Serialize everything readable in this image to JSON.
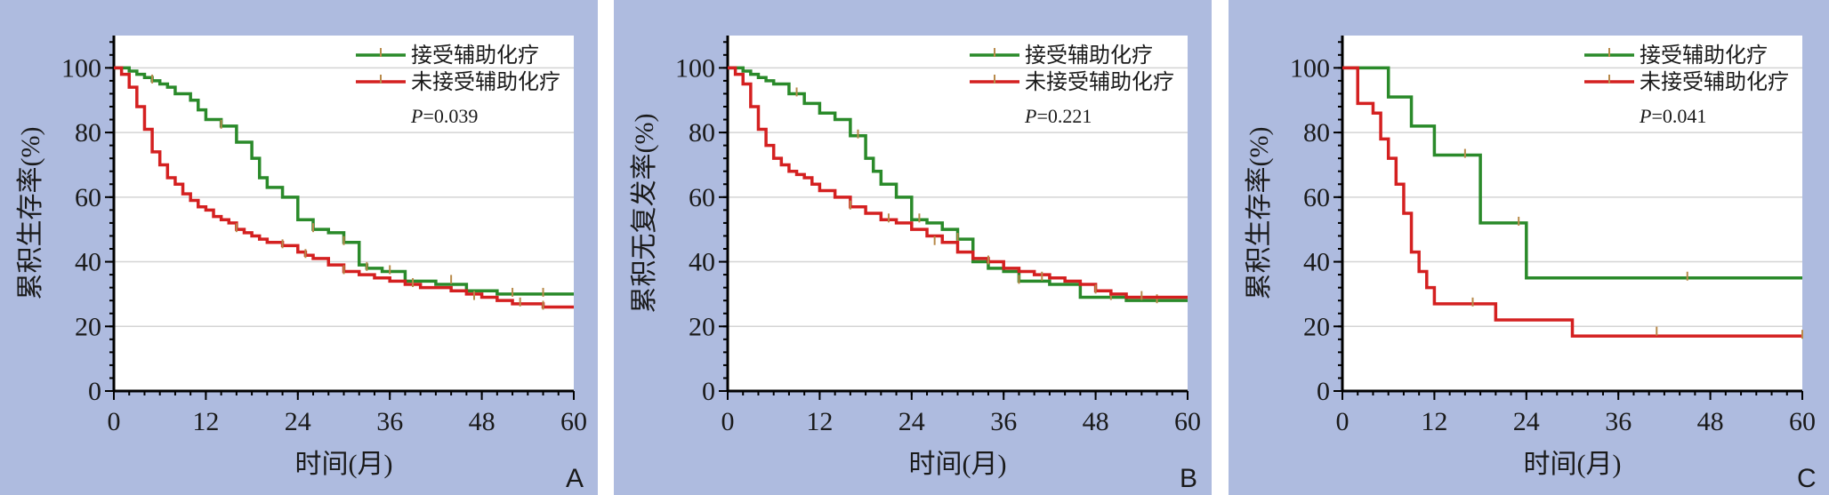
{
  "colors": {
    "panel_background": "#aebbdf",
    "adjuvant_chemo": "#2a8a2a",
    "no_adjuvant_chemo": "#d42020",
    "censor_mark": "#b88a4a"
  },
  "chart_data": [
    {
      "type": "line",
      "subtype": "kaplan-meier step",
      "panel_letter": "A",
      "ylabel": "累积生存率(%)",
      "xlabel": "时间(月)",
      "xlim": [
        0,
        60
      ],
      "ylim": [
        0,
        110
      ],
      "xticks": [
        0,
        12,
        24,
        36,
        48,
        60
      ],
      "yticks": [
        0,
        20,
        40,
        60,
        80,
        100
      ],
      "grid": "horizontal",
      "legend_position": "top-right",
      "p_value": "P=0.039",
      "series": [
        {
          "name": "接受辅助化疗",
          "color": "#2a8a2a",
          "x": [
            0,
            2,
            3,
            4,
            5,
            6,
            7,
            8,
            10,
            11,
            12,
            14,
            16,
            18,
            19,
            20,
            22,
            24,
            26,
            28,
            30,
            32,
            33,
            35,
            38,
            42,
            46,
            50,
            52,
            54,
            56,
            58,
            60
          ],
          "y": [
            100,
            99,
            98,
            97,
            96,
            95,
            94,
            92,
            90,
            87,
            84,
            82,
            77,
            72,
            66,
            63,
            60,
            53,
            50,
            49,
            46,
            39,
            38,
            37,
            34,
            33,
            31,
            30,
            30,
            30,
            30,
            30,
            30
          ],
          "censored": [
            [
              5,
              96
            ],
            [
              14,
              82
            ],
            [
              26,
              50
            ],
            [
              30,
              46
            ],
            [
              33,
              38
            ],
            [
              36,
              37
            ],
            [
              44,
              34
            ],
            [
              52,
              30
            ],
            [
              56,
              30
            ]
          ]
        },
        {
          "name": "未接受辅助化疗",
          "color": "#d42020",
          "x": [
            0,
            1,
            2,
            3,
            4,
            5,
            6,
            7,
            8,
            9,
            10,
            11,
            12,
            13,
            14,
            15,
            16,
            17,
            18,
            19,
            20,
            21,
            22,
            24,
            25,
            26,
            28,
            30,
            32,
            34,
            36,
            38,
            40,
            42,
            44,
            46,
            48,
            50,
            52,
            54,
            56,
            60
          ],
          "y": [
            100,
            98,
            94,
            88,
            81,
            74,
            70,
            66,
            64,
            61,
            59,
            57,
            56,
            54,
            53,
            52,
            50,
            49,
            48,
            47,
            46,
            46,
            45,
            43,
            42,
            41,
            39,
            37,
            36,
            35,
            34,
            33,
            32,
            32,
            31,
            30,
            29,
            28,
            27,
            27,
            26,
            26
          ],
          "censored": [
            [
              16,
              50
            ],
            [
              22,
              45
            ],
            [
              25,
              42
            ],
            [
              30,
              37
            ],
            [
              39,
              33
            ],
            [
              47,
              29
            ],
            [
              53,
              27
            ],
            [
              56,
              26
            ]
          ]
        }
      ]
    },
    {
      "type": "line",
      "subtype": "kaplan-meier step",
      "panel_letter": "B",
      "ylabel": "累积无复发率(%)",
      "xlabel": "时间(月)",
      "xlim": [
        0,
        60
      ],
      "ylim": [
        0,
        110
      ],
      "xticks": [
        0,
        12,
        24,
        36,
        48,
        60
      ],
      "yticks": [
        0,
        20,
        40,
        60,
        80,
        100
      ],
      "grid": "horizontal",
      "legend_position": "top-right",
      "p_value": "P=0.221",
      "series": [
        {
          "name": "接受辅助化疗",
          "color": "#2a8a2a",
          "x": [
            0,
            2,
            3,
            4,
            5,
            6,
            8,
            10,
            12,
            14,
            16,
            18,
            19,
            20,
            22,
            24,
            26,
            28,
            30,
            32,
            34,
            36,
            38,
            42,
            46,
            48,
            50,
            52,
            54,
            56,
            58,
            60
          ],
          "y": [
            100,
            99,
            98,
            97,
            96,
            95,
            92,
            89,
            86,
            84,
            79,
            72,
            68,
            64,
            60,
            53,
            52,
            50,
            47,
            40,
            38,
            37,
            34,
            33,
            29,
            29,
            29,
            28,
            28,
            28,
            28,
            28
          ],
          "censored": [
            [
              9,
              92
            ],
            [
              17,
              79
            ],
            [
              25,
              53
            ],
            [
              30,
              47
            ],
            [
              38,
              34
            ],
            [
              50,
              29
            ],
            [
              56,
              28
            ]
          ]
        },
        {
          "name": "未接受辅助化疗",
          "color": "#d42020",
          "x": [
            0,
            1,
            2,
            3,
            4,
            5,
            6,
            7,
            8,
            9,
            10,
            11,
            12,
            14,
            16,
            18,
            20,
            22,
            24,
            26,
            28,
            30,
            32,
            34,
            36,
            38,
            40,
            42,
            44,
            46,
            48,
            50,
            52,
            54,
            56,
            60
          ],
          "y": [
            100,
            98,
            95,
            88,
            81,
            76,
            72,
            70,
            68,
            67,
            66,
            64,
            62,
            60,
            57,
            55,
            53,
            52,
            50,
            48,
            46,
            43,
            41,
            40,
            38,
            37,
            36,
            35,
            34,
            33,
            31,
            30,
            29,
            29,
            29,
            29
          ],
          "censored": [
            [
              16,
              57
            ],
            [
              21,
              53
            ],
            [
              27,
              46
            ],
            [
              34,
              40
            ],
            [
              41,
              35
            ],
            [
              48,
              31
            ],
            [
              54,
              29
            ]
          ]
        }
      ]
    },
    {
      "type": "line",
      "subtype": "kaplan-meier step",
      "panel_letter": "C",
      "ylabel": "累积生存率(%)",
      "xlabel": "时间(月)",
      "xlim": [
        0,
        60
      ],
      "ylim": [
        0,
        110
      ],
      "xticks": [
        0,
        12,
        24,
        36,
        48,
        60
      ],
      "yticks": [
        0,
        20,
        40,
        60,
        80,
        100
      ],
      "grid": "horizontal",
      "legend_position": "top-right",
      "p_value": "P=0.041",
      "series": [
        {
          "name": "接受辅助化疗",
          "color": "#2a8a2a",
          "x": [
            0,
            6,
            9,
            12,
            18,
            24,
            60
          ],
          "y": [
            100,
            91,
            82,
            73,
            52,
            35,
            35
          ],
          "censored": [
            [
              16,
              73
            ],
            [
              23,
              52
            ],
            [
              45,
              35
            ]
          ]
        },
        {
          "name": "未接受辅助化疗",
          "color": "#d42020",
          "x": [
            0,
            2,
            4,
            5,
            6,
            7,
            8,
            9,
            10,
            11,
            12,
            20,
            30,
            60
          ],
          "y": [
            100,
            89,
            86,
            78,
            72,
            64,
            55,
            43,
            37,
            32,
            27,
            22,
            17,
            17
          ],
          "censored": [
            [
              17,
              27
            ],
            [
              41,
              18
            ],
            [
              60,
              17
            ]
          ]
        }
      ]
    }
  ]
}
